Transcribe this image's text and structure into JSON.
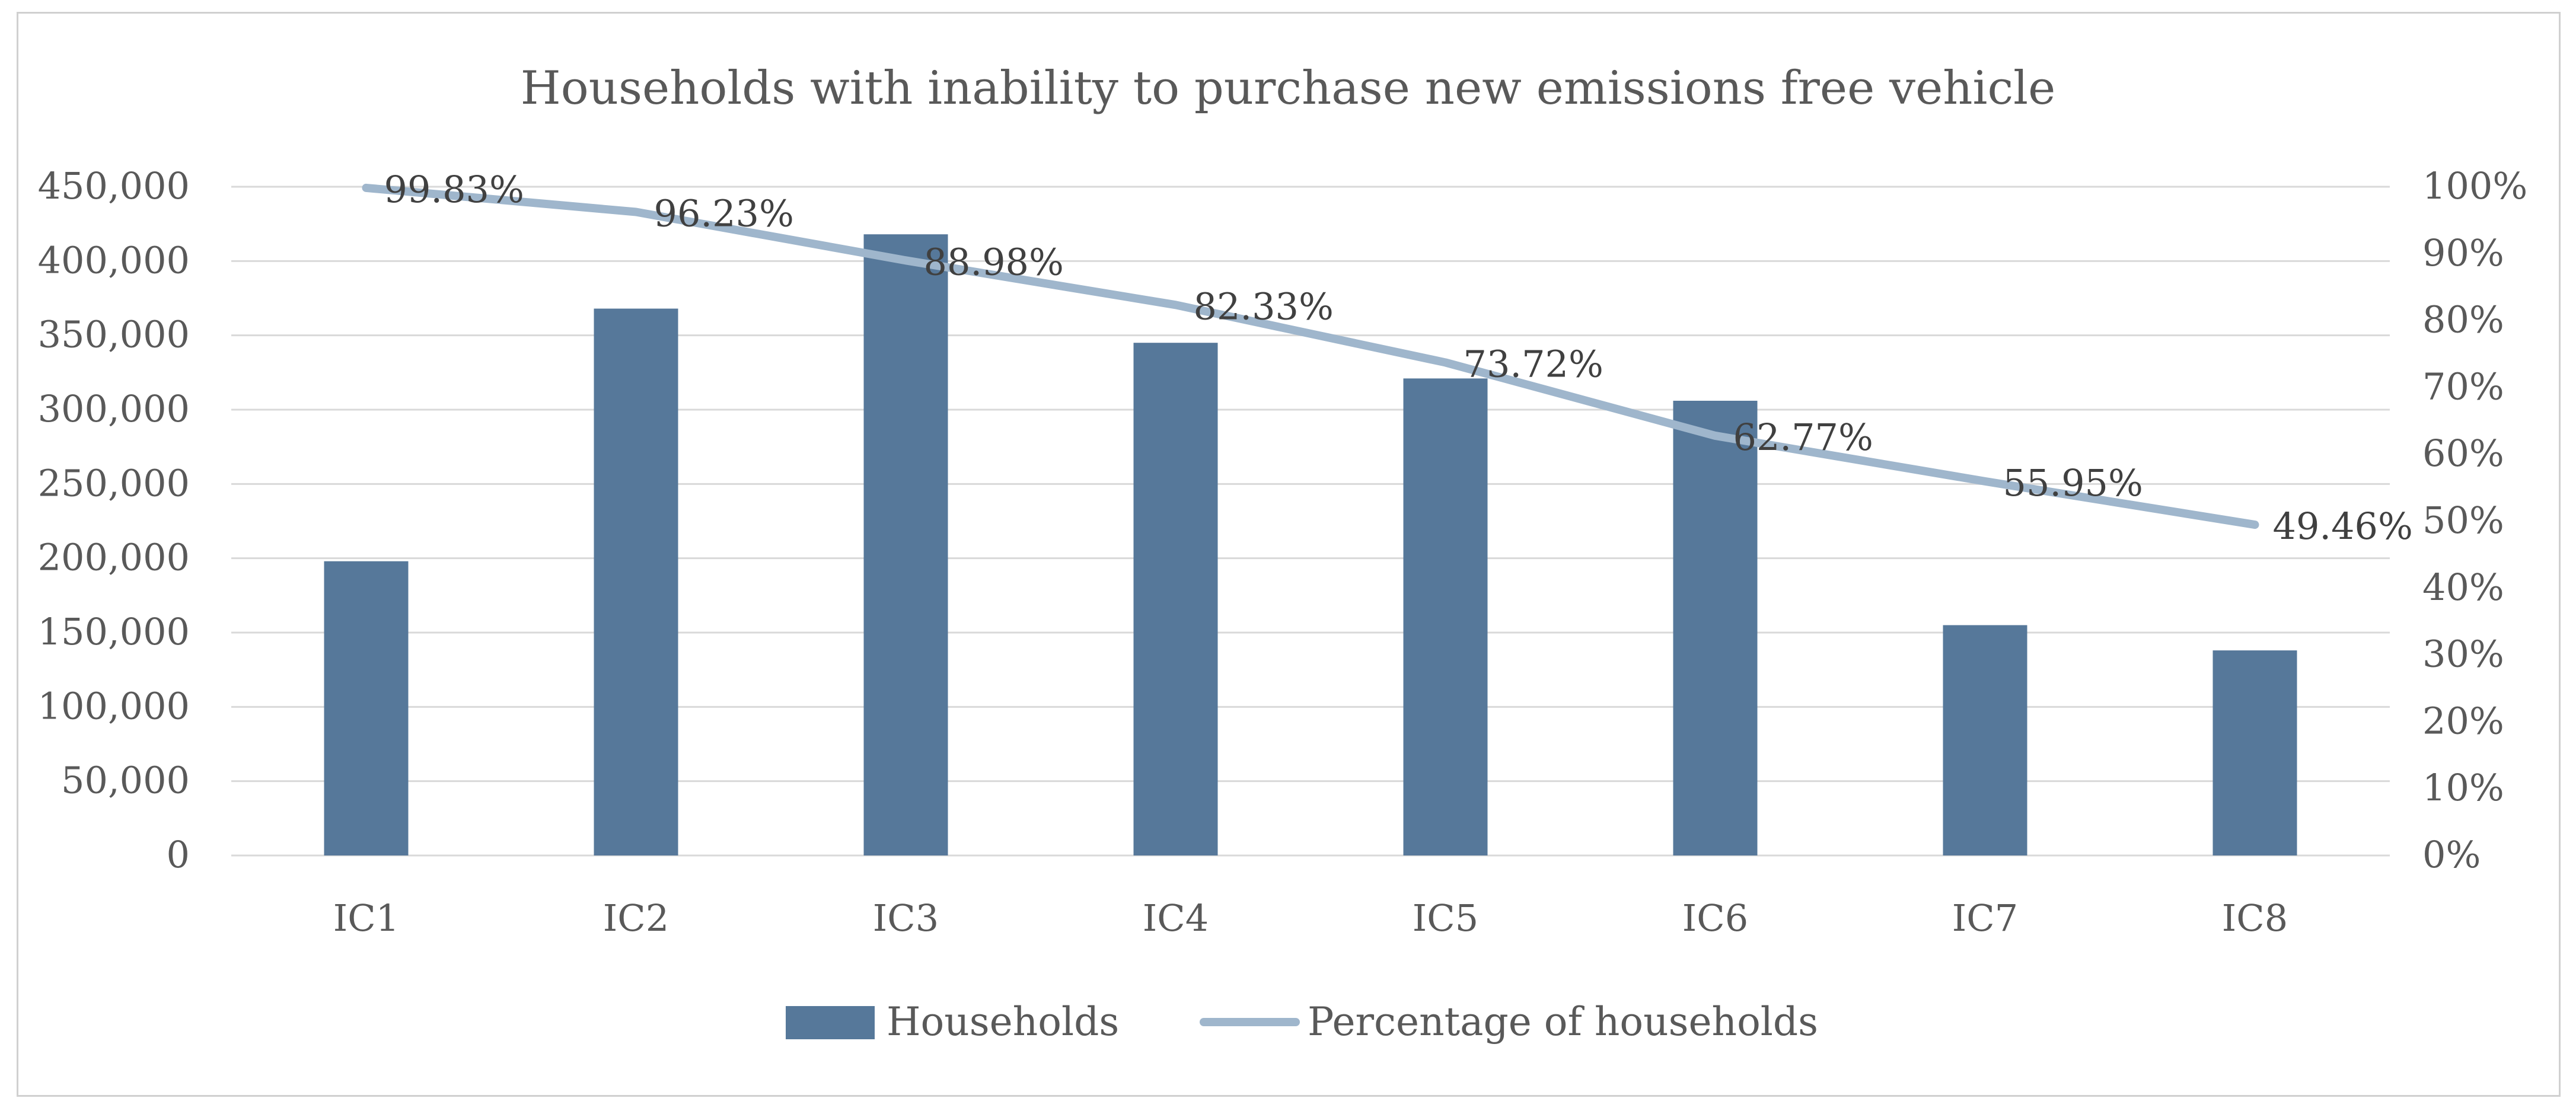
{
  "chart_data": {
    "type": "bar",
    "title": "Households with inability to purchase new emissions free vehicle",
    "categories": [
      "IC1",
      "IC2",
      "IC3",
      "IC4",
      "IC5",
      "IC6",
      "IC7",
      "IC8"
    ],
    "series": [
      {
        "name": "Households",
        "type": "bar",
        "axis": "left",
        "color": "#56789a",
        "values": [
          198000,
          368000,
          418000,
          345000,
          321000,
          306000,
          155000,
          138000
        ]
      },
      {
        "name": "Percentage of households",
        "type": "line",
        "axis": "right",
        "color": "#9fb6cc",
        "values": [
          99.83,
          96.23,
          88.98,
          82.33,
          73.72,
          62.77,
          55.95,
          49.46
        ],
        "labels": [
          "99.83%",
          "96.23%",
          "88.98%",
          "82.33%",
          "73.72%",
          "62.77%",
          "55.95%",
          "49.46%"
        ]
      }
    ],
    "y_left": {
      "min": 0,
      "max": 450000,
      "step": 50000,
      "tick_labels": [
        "0",
        "50,000",
        "100,000",
        "150,000",
        "200,000",
        "250,000",
        "300,000",
        "350,000",
        "400,000",
        "450,000"
      ]
    },
    "y_right": {
      "min": 0,
      "max": 100,
      "step": 10,
      "tick_labels": [
        "0%",
        "10%",
        "20%",
        "30%",
        "40%",
        "50%",
        "60%",
        "70%",
        "80%",
        "90%",
        "100%"
      ]
    },
    "grid": true,
    "gridline_color": "#d9d9d9",
    "legend_position": "bottom"
  }
}
